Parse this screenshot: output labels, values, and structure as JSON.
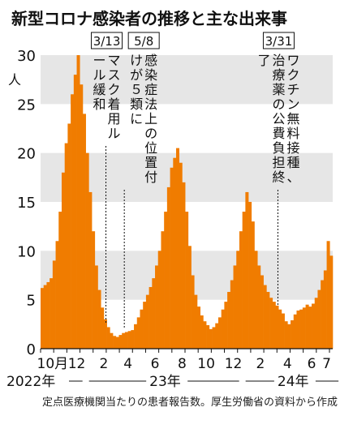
{
  "chart_data": {
    "type": "area",
    "title": "新型コロナ感染者の推移と主な出来事",
    "y_unit": "人",
    "ylim": [
      0,
      30
    ],
    "y_ticks": [
      "0",
      "5",
      "10",
      "15",
      "20",
      "25",
      "30"
    ],
    "grid_bands": true,
    "bar_color": "#f07c00",
    "band_color": "#e6e6e6",
    "x_ticks": [
      {
        "label": "10月",
        "pos": 4
      },
      {
        "label": "12",
        "pos": 12
      },
      {
        "label": "2",
        "pos": 21
      },
      {
        "label": "4",
        "pos": 29
      },
      {
        "label": "6",
        "pos": 38
      },
      {
        "label": "8",
        "pos": 47
      },
      {
        "label": "10",
        "pos": 55
      },
      {
        "label": "12",
        "pos": 64
      },
      {
        "label": "2",
        "pos": 73
      },
      {
        "label": "4",
        "pos": 82
      },
      {
        "label": "6",
        "pos": 90
      },
      {
        "label": "7",
        "pos": 95
      }
    ],
    "years": [
      {
        "label": "2022年",
        "from": 0,
        "to": 15
      },
      {
        "label": "23年",
        "from": 15,
        "to": 67
      },
      {
        "label": "24年",
        "from": 67,
        "to": 100
      }
    ],
    "annotations": [
      {
        "date": "3/13",
        "text": "マスク着用ルール緩和",
        "x": 21.7
      },
      {
        "date": "5/8",
        "text": "感染症法上の位置付けが５類に",
        "x": 27.8
      },
      {
        "date": "3/31",
        "text": "ワクチン無料接種、治療薬の公費負担終了",
        "x": 78.8
      }
    ],
    "series": [
      {
        "x": [
          0,
          1,
          2,
          3,
          4,
          5,
          6,
          7,
          8,
          9,
          10,
          11,
          12,
          13,
          14,
          15,
          16,
          17,
          18,
          19,
          20,
          21,
          22,
          23,
          24,
          25,
          26,
          27,
          28,
          29,
          30,
          31,
          32,
          33,
          34,
          35,
          36,
          37,
          38,
          39,
          40,
          41,
          42,
          43,
          44,
          45,
          46,
          47,
          48,
          49,
          50,
          51,
          52,
          53,
          54,
          55,
          56,
          57,
          58,
          59,
          60,
          61,
          62,
          63,
          64,
          65,
          66,
          67,
          68,
          69,
          70,
          71,
          72,
          73,
          74,
          75,
          76,
          77,
          78,
          79,
          80,
          81,
          82,
          83,
          84,
          85,
          86,
          87,
          88,
          89,
          90,
          91,
          92,
          93,
          94,
          95,
          96
        ],
        "values": [
          6.2,
          6.5,
          6.8,
          7.2,
          9,
          11,
          14,
          18,
          21,
          23,
          26,
          28,
          30,
          27,
          24,
          20,
          16,
          12,
          8.5,
          6,
          4.2,
          3,
          2.2,
          1.6,
          1.3,
          1.2,
          1.4,
          1.6,
          1.7,
          1.8,
          1.9,
          2.5,
          3.2,
          4,
          4.8,
          5.5,
          6.3,
          7.2,
          8.5,
          10,
          12,
          14,
          16.5,
          18.5,
          19.5,
          20.5,
          19,
          17,
          14,
          10.5,
          7.5,
          5.5,
          4.3,
          3.4,
          2.8,
          2.4,
          2,
          2.2,
          2.6,
          3.2,
          4,
          4.8,
          5.8,
          7,
          8.5,
          10,
          12,
          14,
          16,
          15,
          13,
          10,
          8.5,
          7.5,
          6.5,
          5.8,
          5.2,
          4.8,
          4.4,
          4,
          3.6,
          2.8,
          2.5,
          2.9,
          3.5,
          3.9,
          4,
          4.2,
          4.5,
          4.3,
          4.6,
          5.2,
          6,
          7,
          8,
          11,
          9.5
        ]
      }
    ]
  },
  "note": "定点医療機関当たりの患者報告数。厚生労働省の資料から作成"
}
